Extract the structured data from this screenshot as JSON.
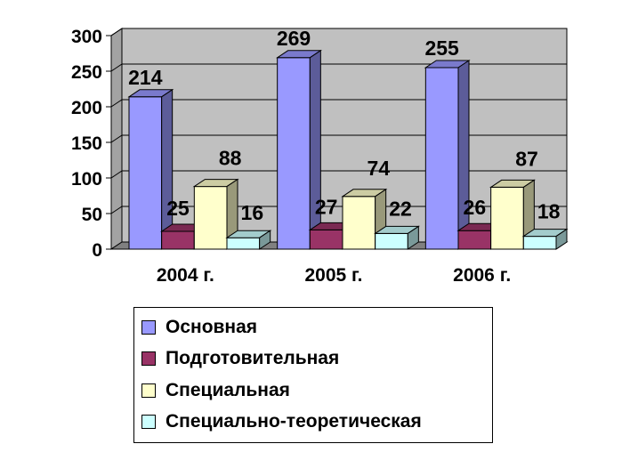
{
  "chart_data": {
    "type": "bar",
    "style": "3d-clustered-column",
    "categories": [
      "2004 г.",
      "2005 г.",
      "2006 г."
    ],
    "series": [
      {
        "name": "Основная",
        "values": [
          214,
          269,
          255
        ],
        "color": "#9999ff"
      },
      {
        "name": "Подготовительная",
        "values": [
          25,
          27,
          26
        ],
        "color": "#993366"
      },
      {
        "name": "Специальная",
        "values": [
          88,
          74,
          87
        ],
        "color": "#ffffcc"
      },
      {
        "name": "Специально-теоретическая",
        "values": [
          16,
          22,
          18
        ],
        "color": "#ccffff"
      }
    ],
    "yticks": [
      "0",
      "50",
      "100",
      "150",
      "200",
      "250",
      "300"
    ],
    "ylim": [
      0,
      300
    ],
    "grid": true,
    "legend_position": "bottom",
    "wall_color": "#c0c0c0",
    "floor_color": "#808080"
  }
}
